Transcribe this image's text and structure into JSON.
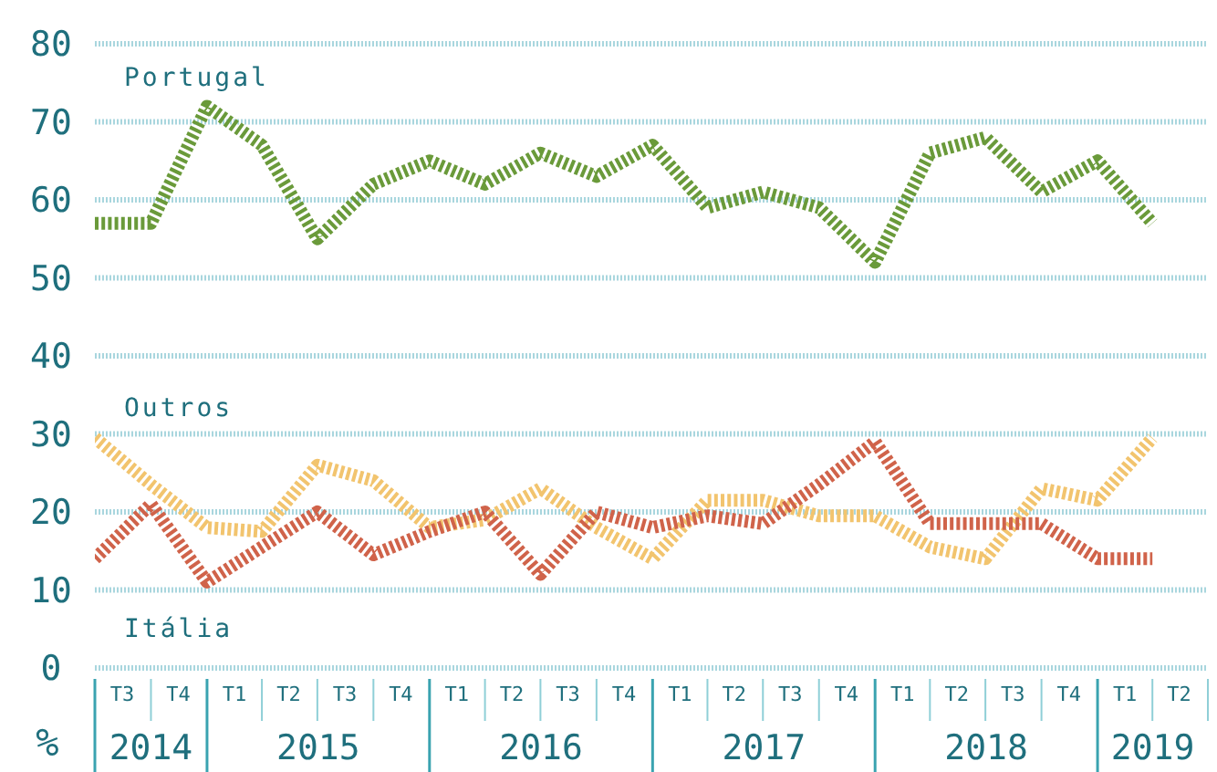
{
  "chart_data": {
    "type": "line",
    "ylabel": "%",
    "x": [
      "2014-07",
      "2014-10",
      "2015-01",
      "2015-04",
      "2015-07",
      "2015-10",
      "2016-01",
      "2016-04",
      "2016-07",
      "2016-10",
      "2017-01",
      "2017-04",
      "2017-07",
      "2017-10",
      "2018-01",
      "2018-04",
      "2018-07",
      "2018-10",
      "2019-01",
      "2019-04"
    ],
    "xlim": [
      "2014-07",
      "2019-07"
    ],
    "xticks": [
      {
        "value": "2014-08-15",
        "label": "T3"
      },
      {
        "value": "2014-11-15",
        "label": "T4"
      },
      {
        "value": "2015-02-15",
        "label": "T1"
      },
      {
        "value": "2015-05-15",
        "label": "T2"
      },
      {
        "value": "2015-08-15",
        "label": "T3"
      },
      {
        "value": "2015-11-15",
        "label": "T4"
      },
      {
        "value": "2016-02-15",
        "label": "T1"
      },
      {
        "value": "2016-05-15",
        "label": "T2"
      },
      {
        "value": "2016-08-15",
        "label": "T3"
      },
      {
        "value": "2016-11-15",
        "label": "T4"
      },
      {
        "value": "2017-02-15",
        "label": "T1"
      },
      {
        "value": "2017-05-15",
        "label": "T2"
      },
      {
        "value": "2017-08-15",
        "label": "T3"
      },
      {
        "value": "2017-11-15",
        "label": "T4"
      },
      {
        "value": "2018-02-15",
        "label": "T1"
      },
      {
        "value": "2018-05-15",
        "label": "T2"
      },
      {
        "value": "2018-08-15",
        "label": "T3"
      },
      {
        "value": "2018-11-15",
        "label": "T4"
      },
      {
        "value": "2019-02-15",
        "label": "T1"
      },
      {
        "value": "2019-05-15",
        "label": "T2"
      }
    ],
    "ylim": [
      0,
      80
    ],
    "yticks": [
      0,
      10,
      20,
      30,
      40,
      50,
      60,
      70,
      80
    ],
    "grid": "y",
    "line_style": "dotted",
    "marker": "none",
    "annotations": [
      "2014",
      "2015",
      "2016",
      "2017",
      "2018",
      "2019"
    ],
    "series": [
      {
        "name": "Portugal",
        "color": "#6a9a3a",
        "values": [
          57,
          57,
          72,
          67,
          55,
          62,
          65,
          62,
          66,
          63,
          67,
          59,
          61,
          59,
          52,
          66,
          68,
          61,
          65,
          57
        ]
      },
      {
        "name": "Outros",
        "color": "#f2c46e",
        "values": [
          29.5,
          23.5,
          18,
          17.5,
          26,
          24,
          18,
          19,
          23,
          18,
          14,
          21.5,
          21.5,
          19.5,
          19.5,
          15.5,
          14,
          23,
          21.5,
          29.5
        ]
      },
      {
        "name": "Itália",
        "color": "#d0634a",
        "values": [
          14,
          21,
          11,
          15.5,
          20,
          14.5,
          17.5,
          20,
          12,
          20,
          18,
          19.5,
          18.5,
          23.5,
          29,
          18.5,
          18.5,
          18.5,
          14,
          14
        ]
      }
    ]
  }
}
